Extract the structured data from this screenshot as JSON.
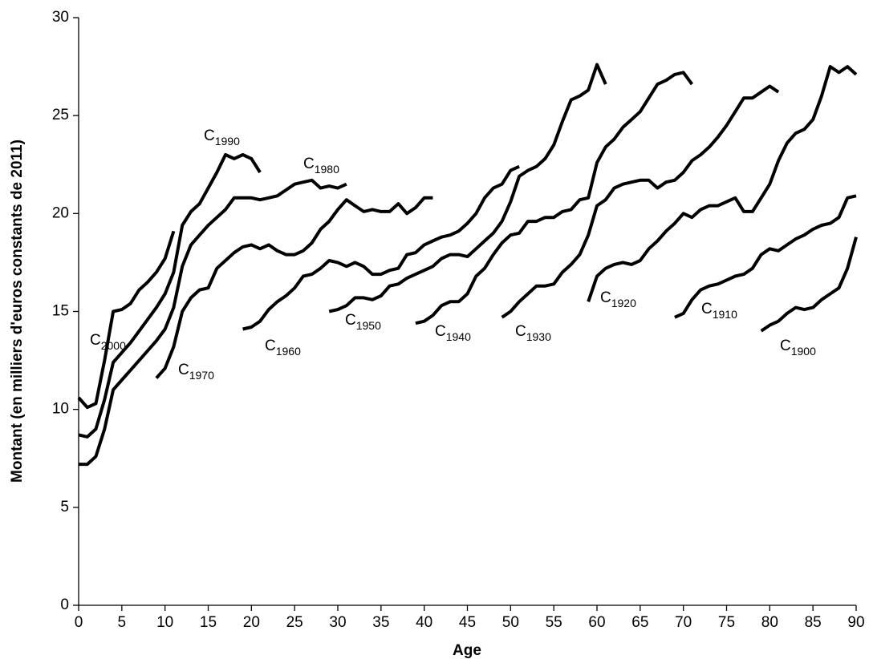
{
  "chart_data": {
    "type": "line",
    "x_label": "Age",
    "y_label": "Montant (en milliers d'euros constants de 2011)",
    "xlim": [
      0,
      90
    ],
    "xticks": [
      0,
      5,
      10,
      15,
      20,
      25,
      30,
      35,
      40,
      45,
      50,
      55,
      60,
      65,
      70,
      75,
      80,
      85,
      90
    ],
    "ylim": [
      0,
      30
    ],
    "yticks": [
      0,
      5,
      10,
      15,
      20,
      25,
      30
    ],
    "grid": false,
    "color": "#000000",
    "series": [
      {
        "label": {
          "main": "C",
          "sub": "2000"
        },
        "x": [
          0,
          1,
          2,
          3,
          4,
          5,
          6,
          7,
          8,
          9,
          10,
          11
        ],
        "values": [
          10.6,
          10.1,
          10.3,
          12.5,
          15.0,
          15.1,
          15.4,
          16.1,
          16.5,
          17.0,
          17.7,
          19.1
        ]
      },
      {
        "label": {
          "main": "C",
          "sub": "1990"
        },
        "x": [
          0,
          1,
          2,
          3,
          4,
          5,
          6,
          7,
          8,
          9,
          10,
          11,
          12,
          13,
          14,
          15,
          16,
          17,
          18,
          19,
          20,
          21
        ],
        "values": [
          8.7,
          8.6,
          9.0,
          10.5,
          12.4,
          12.9,
          13.4,
          14.0,
          14.6,
          15.2,
          15.9,
          17.0,
          19.4,
          20.1,
          20.5,
          21.3,
          22.1,
          23.0,
          22.8,
          23.0,
          22.8,
          22.1
        ]
      },
      {
        "label": {
          "main": "C",
          "sub": "1980"
        },
        "x": [
          0,
          1,
          2,
          3,
          4,
          5,
          6,
          7,
          8,
          9,
          10,
          11,
          12,
          13,
          14,
          15,
          16,
          17,
          18,
          19,
          20,
          21,
          22,
          23,
          24,
          25,
          26,
          27,
          28,
          29,
          30,
          31
        ],
        "values": [
          7.2,
          7.2,
          7.6,
          9.0,
          11.0,
          11.5,
          12.0,
          12.5,
          13.0,
          13.5,
          14.1,
          15.2,
          17.3,
          18.4,
          18.9,
          19.4,
          19.8,
          20.2,
          20.8,
          20.8,
          20.8,
          20.7,
          20.8,
          20.9,
          21.2,
          21.5,
          21.6,
          21.7,
          21.3,
          21.4,
          21.3,
          21.5
        ]
      },
      {
        "label": {
          "main": "C",
          "sub": "1970"
        },
        "x": [
          9,
          10,
          11,
          12,
          13,
          14,
          15,
          16,
          17,
          18,
          19,
          20,
          21,
          22,
          23,
          24,
          25,
          26,
          27,
          28,
          29,
          30,
          31,
          32,
          33,
          34,
          35,
          36,
          37,
          38,
          39,
          40,
          41
        ],
        "values": [
          11.6,
          12.1,
          13.2,
          15.0,
          15.7,
          16.1,
          16.2,
          17.2,
          17.6,
          18.0,
          18.3,
          18.4,
          18.2,
          18.4,
          18.1,
          17.9,
          17.9,
          18.1,
          18.5,
          19.2,
          19.6,
          20.2,
          20.7,
          20.4,
          20.1,
          20.2,
          20.1,
          20.1,
          20.5,
          20.0,
          20.3,
          20.8,
          20.8
        ]
      },
      {
        "label": {
          "main": "C",
          "sub": "1960"
        },
        "x": [
          19,
          20,
          21,
          22,
          23,
          24,
          25,
          26,
          27,
          28,
          29,
          30,
          31,
          32,
          33,
          34,
          35,
          36,
          37,
          38,
          39,
          40,
          41,
          42,
          43,
          44,
          45,
          46,
          47,
          48,
          49,
          50,
          51
        ],
        "values": [
          14.1,
          14.2,
          14.5,
          15.1,
          15.5,
          15.8,
          16.2,
          16.8,
          16.9,
          17.2,
          17.6,
          17.5,
          17.3,
          17.5,
          17.3,
          16.9,
          16.9,
          17.1,
          17.2,
          17.9,
          18.0,
          18.4,
          18.6,
          18.8,
          18.9,
          19.1,
          19.5,
          20.0,
          20.8,
          21.3,
          21.5,
          22.2,
          22.4
        ]
      },
      {
        "label": {
          "main": "C",
          "sub": "1950"
        },
        "x": [
          29,
          30,
          31,
          32,
          33,
          34,
          35,
          36,
          37,
          38,
          39,
          40,
          41,
          42,
          43,
          44,
          45,
          46,
          47,
          48,
          49,
          50,
          51,
          52,
          53,
          54,
          55,
          56,
          57,
          58,
          59,
          60,
          61
        ],
        "values": [
          15.0,
          15.1,
          15.3,
          15.7,
          15.7,
          15.6,
          15.8,
          16.3,
          16.4,
          16.7,
          16.9,
          17.1,
          17.3,
          17.7,
          17.9,
          17.9,
          17.8,
          18.2,
          18.6,
          19.0,
          19.6,
          20.6,
          21.9,
          22.2,
          22.4,
          22.8,
          23.5,
          24.7,
          25.8,
          26.0,
          26.3,
          27.6,
          26.6
        ]
      },
      {
        "label": {
          "main": "C",
          "sub": "1940"
        },
        "x": [
          39,
          40,
          41,
          42,
          43,
          44,
          45,
          46,
          47,
          48,
          49,
          50,
          51,
          52,
          53,
          54,
          55,
          56,
          57,
          58,
          59,
          60,
          61,
          62,
          63,
          64,
          65,
          66,
          67,
          68,
          69,
          70,
          71
        ],
        "values": [
          14.4,
          14.5,
          14.8,
          15.3,
          15.5,
          15.5,
          15.9,
          16.8,
          17.2,
          17.9,
          18.5,
          18.9,
          19.0,
          19.6,
          19.6,
          19.8,
          19.8,
          20.1,
          20.2,
          20.7,
          20.8,
          22.6,
          23.4,
          23.8,
          24.4,
          24.8,
          25.2,
          25.9,
          26.6,
          26.8,
          27.1,
          27.2,
          26.6
        ]
      },
      {
        "label": {
          "main": "C",
          "sub": "1930"
        },
        "x": [
          49,
          50,
          51,
          52,
          53,
          54,
          55,
          56,
          57,
          58,
          59,
          60,
          61,
          62,
          63,
          64,
          65,
          66,
          67,
          68,
          69,
          70,
          71,
          72,
          73,
          74,
          75,
          76,
          77,
          78,
          79,
          80,
          81
        ],
        "values": [
          14.7,
          15.0,
          15.5,
          15.9,
          16.3,
          16.3,
          16.4,
          17.0,
          17.4,
          17.9,
          18.9,
          20.4,
          20.7,
          21.3,
          21.5,
          21.6,
          21.7,
          21.7,
          21.3,
          21.6,
          21.7,
          22.1,
          22.7,
          23.0,
          23.4,
          23.9,
          24.5,
          25.2,
          25.9,
          25.9,
          26.2,
          26.5,
          26.2
        ]
      },
      {
        "label": {
          "main": "C",
          "sub": "1920"
        },
        "x": [
          59,
          60,
          61,
          62,
          63,
          64,
          65,
          66,
          67,
          68,
          69,
          70,
          71,
          72,
          73,
          74,
          75,
          76,
          77,
          78,
          79,
          80,
          81,
          82,
          83,
          84,
          85,
          86,
          87,
          88,
          89,
          90
        ],
        "values": [
          15.5,
          16.8,
          17.2,
          17.4,
          17.5,
          17.4,
          17.6,
          18.2,
          18.6,
          19.1,
          19.5,
          20.0,
          19.8,
          20.2,
          20.4,
          20.4,
          20.6,
          20.8,
          20.1,
          20.1,
          20.8,
          21.5,
          22.7,
          23.6,
          24.1,
          24.3,
          24.8,
          26.0,
          27.5,
          27.2,
          27.5,
          27.1
        ]
      },
      {
        "label": {
          "main": "C",
          "sub": "1910"
        },
        "x": [
          69,
          70,
          71,
          72,
          73,
          74,
          75,
          76,
          77,
          78,
          79,
          80,
          81,
          82,
          83,
          84,
          85,
          86,
          87,
          88,
          89,
          90
        ],
        "values": [
          14.7,
          14.9,
          15.6,
          16.1,
          16.3,
          16.4,
          16.6,
          16.8,
          16.9,
          17.2,
          17.9,
          18.2,
          18.1,
          18.4,
          18.7,
          18.9,
          19.2,
          19.4,
          19.5,
          19.8,
          20.8,
          20.9
        ]
      },
      {
        "label": {
          "main": "C",
          "sub": "1900"
        },
        "x": [
          79,
          80,
          81,
          82,
          83,
          84,
          85,
          86,
          87,
          88,
          89,
          90
        ],
        "values": [
          14.0,
          14.3,
          14.5,
          14.9,
          15.2,
          15.1,
          15.2,
          15.6,
          15.9,
          16.2,
          17.2,
          18.8
        ]
      }
    ]
  }
}
